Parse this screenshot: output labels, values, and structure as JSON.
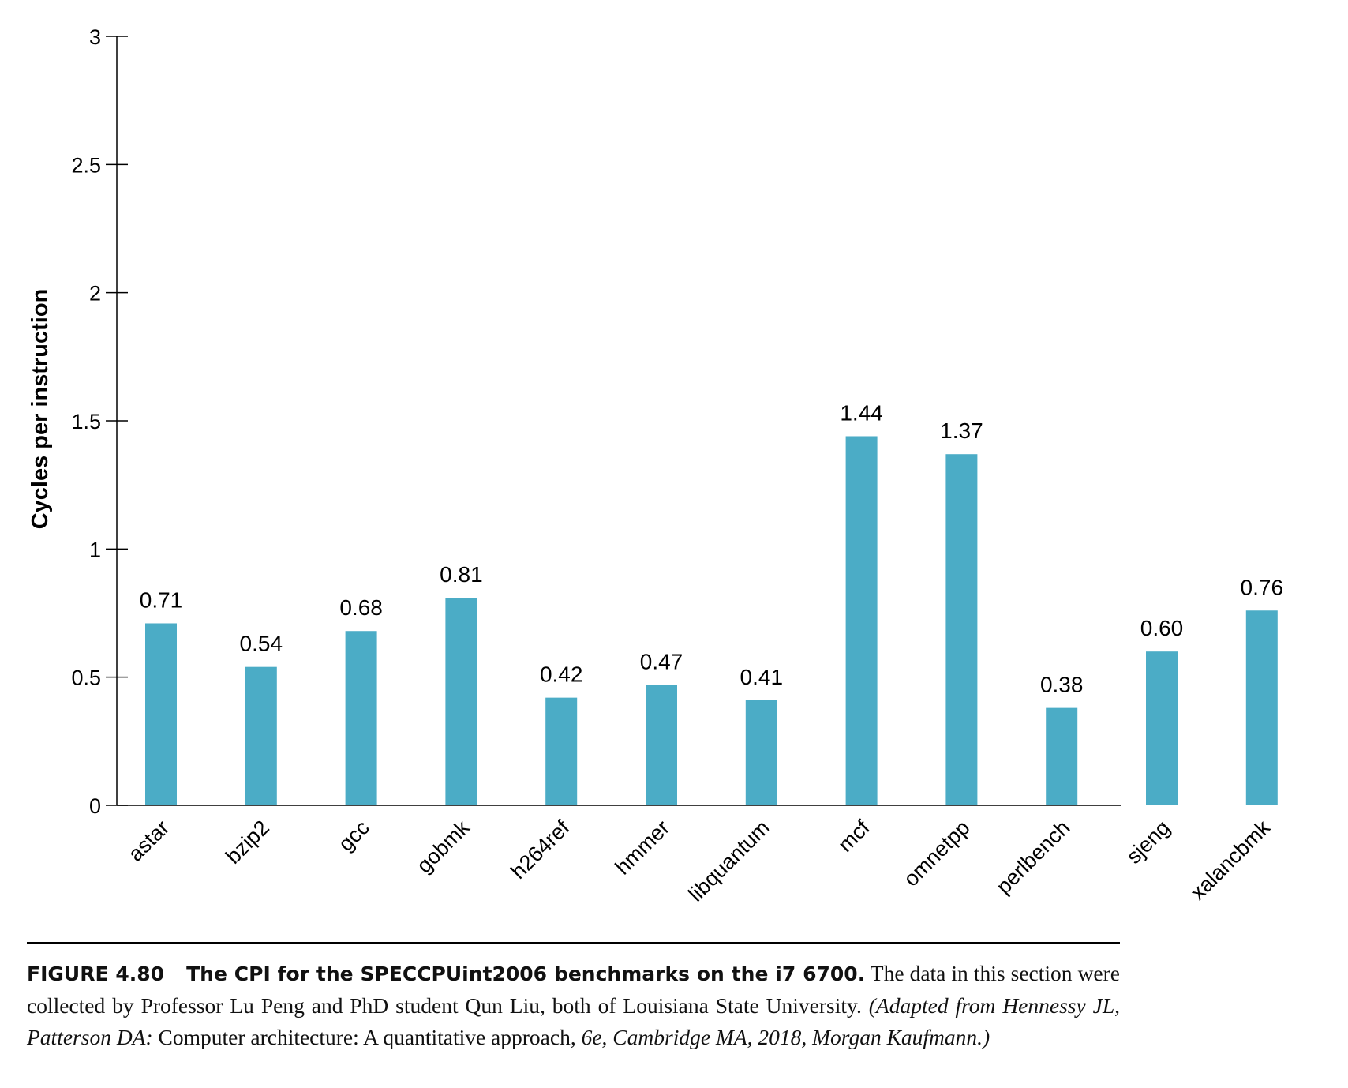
{
  "chart_data": {
    "type": "bar",
    "categories": [
      "astar",
      "bzip2",
      "gcc",
      "gobmk",
      "h264ref",
      "hmmer",
      "libquantum",
      "mcf",
      "omnetpp",
      "perlbench",
      "sjeng",
      "xalancbmk"
    ],
    "values": [
      0.71,
      0.54,
      0.68,
      0.81,
      0.42,
      0.47,
      0.41,
      1.44,
      1.37,
      0.38,
      0.6,
      0.76
    ],
    "value_labels": [
      "0.71",
      "0.54",
      "0.68",
      "0.81",
      "0.42",
      "0.47",
      "0.41",
      "1.44",
      "1.37",
      "0.38",
      "0.60",
      "0.76"
    ],
    "ylabel": "Cycles per instruction",
    "ylim": [
      0,
      3
    ],
    "yticks": [
      "0",
      "0.5",
      "1",
      "1.5",
      "2",
      "2.5",
      "3"
    ],
    "bar_color": "#4BACC6",
    "grid": false
  },
  "caption": {
    "figure_number": "FIGURE 4.80",
    "title": "The CPI for the SPECCPUint2006 benchmarks on the i7 6700.",
    "text": "The data in this section were collected by Professor Lu Peng and PhD student Qun Liu, both of Louisiana State University.",
    "source_open": "(Adapted from Hennessy JL, Patterson DA:",
    "source_work": "Computer architecture: A quantitative approach,",
    "source_close": "6e, Cambridge MA, 2018, Morgan Kaufmann.)"
  }
}
